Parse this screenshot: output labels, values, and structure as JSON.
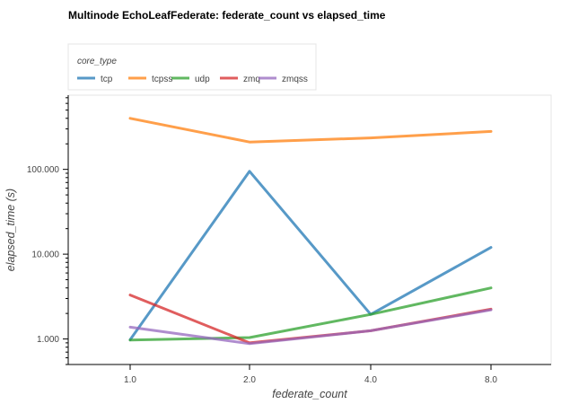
{
  "chart_data": {
    "type": "line",
    "title": "Multinode EchoLeafFederate: federate_count vs elapsed_time",
    "xlabel": "federate_count",
    "ylabel": "elapsed_time (s)",
    "y_scale": "log",
    "ylim": [
      0.5,
      750
    ],
    "categories": [
      "1.0",
      "2.0",
      "4.0",
      "8.0"
    ],
    "y_ticks": [
      {
        "value": 1,
        "label": "1.000"
      },
      {
        "value": 10,
        "label": "10.000"
      },
      {
        "value": 100,
        "label": "100.000"
      }
    ],
    "grid": false,
    "legend": {
      "title": "core_type",
      "placement": "top-left"
    },
    "series": [
      {
        "name": "tcp",
        "color": "#1f77b4",
        "values": [
          0.98,
          95,
          1.95,
          12.0
        ]
      },
      {
        "name": "tcpss",
        "color": "#ff7f0e",
        "values": [
          400,
          210,
          235,
          280
        ]
      },
      {
        "name": "udp",
        "color": "#2ca02c",
        "values": [
          0.97,
          1.04,
          1.95,
          4.0
        ]
      },
      {
        "name": "zmq",
        "color": "#d62728",
        "values": [
          3.3,
          0.9,
          1.25,
          2.25
        ]
      },
      {
        "name": "zmqss",
        "color": "#9467bd",
        "values": [
          1.38,
          0.88,
          1.25,
          2.2
        ]
      }
    ]
  }
}
